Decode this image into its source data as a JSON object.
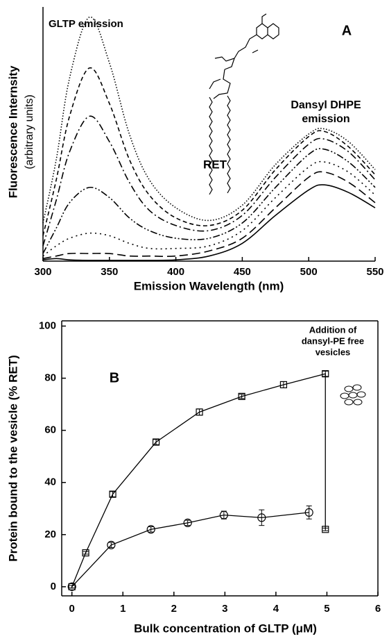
{
  "chart_data": [
    {
      "type": "line",
      "xlabel": "Emission Wavelength (nm)",
      "ylabel": "Fluorescence Internsity",
      "ysublabel": "(arbitrary units)",
      "annotations": [
        "GLTP emission",
        "A",
        "RET",
        "Dansyl DHPE",
        "emission"
      ],
      "xlim": [
        300,
        550
      ],
      "xticks": [
        300,
        350,
        400,
        450,
        500,
        550
      ],
      "ylim": [
        0,
        100
      ],
      "x": [
        300,
        310,
        320,
        335,
        350,
        365,
        380,
        400,
        425,
        450,
        475,
        500,
        512,
        530,
        550
      ],
      "series": [
        {
          "color": "#000000",
          "dash": "1.5,2.5",
          "values": [
            15,
            40,
            72,
            96,
            78,
            50,
            32,
            21,
            16,
            22,
            38,
            50,
            52,
            47,
            36
          ]
        },
        {
          "color": "#000000",
          "dash": "6,4",
          "values": [
            10,
            32,
            57,
            76,
            62,
            40,
            26,
            17,
            14,
            20,
            36,
            49,
            51,
            45,
            34
          ]
        },
        {
          "color": "#000000",
          "dash": "10,4,2,4",
          "values": [
            6,
            24,
            43,
            57,
            47,
            31,
            20,
            14,
            12,
            18,
            33,
            46,
            48,
            43,
            32
          ]
        },
        {
          "color": "#000000",
          "dash": "10,3,2,3,2,3",
          "values": [
            3,
            13,
            23,
            29,
            25,
            17,
            12,
            9,
            9,
            15,
            29,
            42,
            44,
            39,
            29
          ]
        },
        {
          "color": "#000000",
          "dash": "2,5",
          "values": [
            2,
            6,
            9,
            11,
            10,
            7,
            5,
            5,
            6,
            12,
            25,
            37,
            39,
            35,
            26
          ]
        },
        {
          "color": "#000000",
          "dash": "12,6",
          "values": [
            1,
            2,
            3,
            3,
            3,
            2,
            2,
            2,
            4,
            9,
            21,
            33,
            35,
            31,
            23
          ]
        },
        {
          "color": "#000000",
          "dash": "none",
          "values": [
            0.5,
            1,
            0.5,
            0.3,
            0.3,
            0.3,
            0.3,
            0.5,
            2,
            7,
            18,
            28,
            30,
            27,
            21
          ]
        }
      ]
    },
    {
      "type": "scatter",
      "xlabel": "Bulk concentration of GLTP (μM)",
      "ylabel": "Protein bound to the vesicle (% RET)",
      "annotations": [
        "B",
        "Addition of",
        "dansyl-PE free",
        "vesicles"
      ],
      "xlim": [
        -0.2,
        6
      ],
      "xticks": [
        0,
        1,
        2,
        3,
        4,
        5,
        6
      ],
      "ylim": [
        -3.5,
        102
      ],
      "yticks": [
        0,
        20,
        40,
        60,
        80,
        100
      ],
      "series": [
        {
          "marker": "square",
          "color": "#000000",
          "x": [
            0,
            0.27,
            0.8,
            1.65,
            2.5,
            3.33,
            4.15,
            4.97,
            4.97
          ],
          "values": [
            0,
            13,
            35.5,
            55.5,
            67,
            73,
            77.5,
            81.7,
            22
          ],
          "errors": [
            0.5,
            0.5,
            1,
            1,
            1.2,
            0.8,
            1.2,
            1,
            0.5
          ]
        },
        {
          "marker": "circle",
          "color": "#000000",
          "x": [
            0,
            0.77,
            1.55,
            2.27,
            2.98,
            3.72,
            4.65
          ],
          "values": [
            0,
            16,
            22,
            24.5,
            27.5,
            26.5,
            28.5
          ],
          "errors": [
            0.5,
            1,
            1,
            1,
            1.5,
            3,
            2.5
          ]
        }
      ]
    }
  ]
}
